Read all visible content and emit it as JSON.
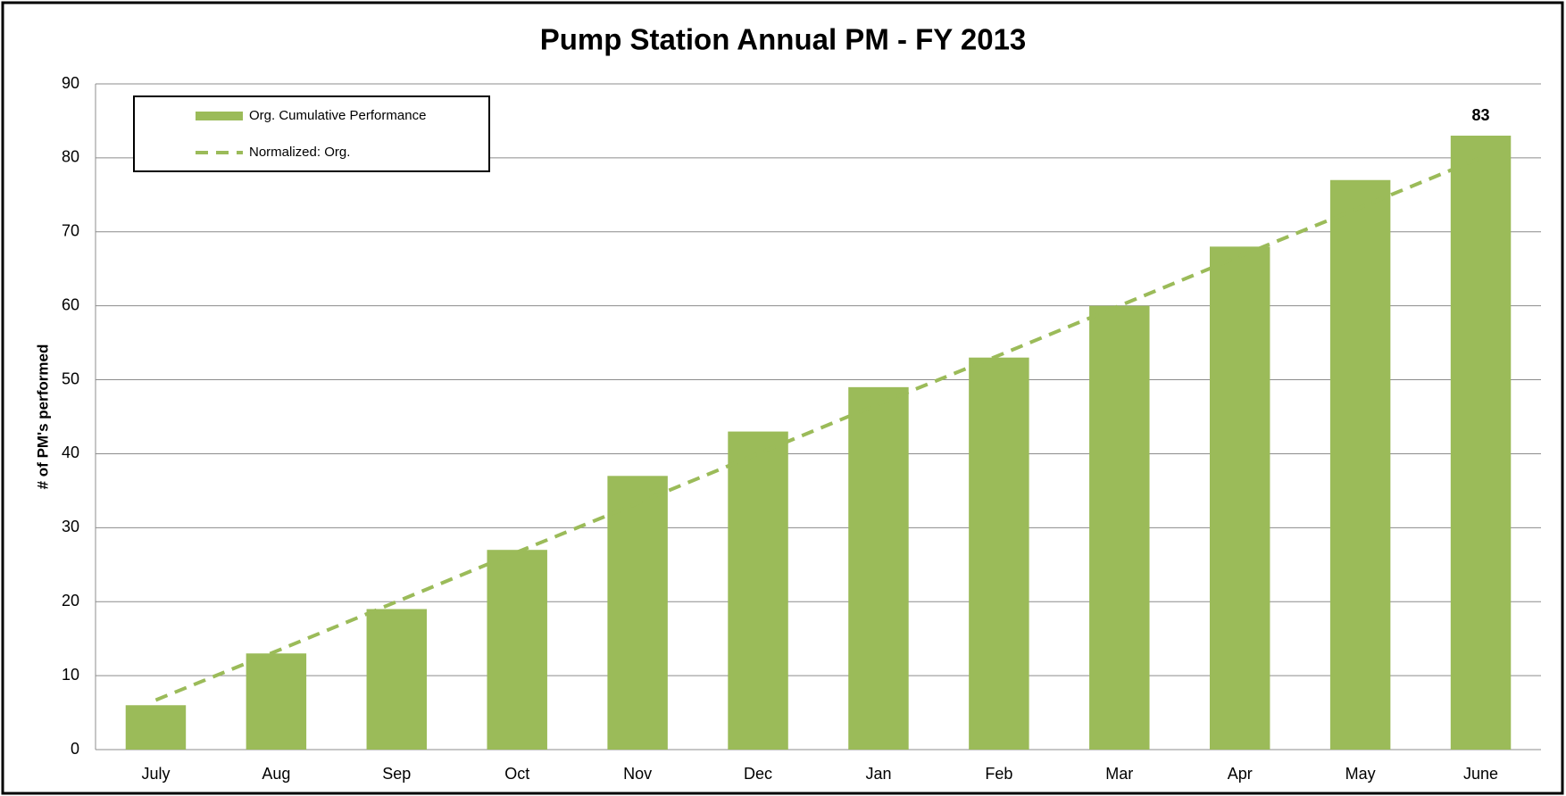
{
  "chart_data": {
    "type": "bar",
    "title": "Pump Station Annual PM - FY 2013",
    "y_label": "# of PM's performed",
    "categories": [
      "July",
      "Aug",
      "Sep",
      "Oct",
      "Nov",
      "Dec",
      "Jan",
      "Feb",
      "Mar",
      "Apr",
      "May",
      "June"
    ],
    "series": [
      {
        "name": "Org. Cumulative Performance",
        "type": "bar",
        "color": "#9bbb59",
        "values": [
          6,
          13,
          19,
          27,
          37,
          43,
          49,
          53,
          60,
          68,
          77,
          83
        ],
        "value_labels": [
          null,
          null,
          null,
          null,
          null,
          null,
          null,
          null,
          null,
          null,
          null,
          "83"
        ]
      },
      {
        "name": "Normalized: Org.",
        "type": "line",
        "dashed": true,
        "color": "#9bbb59",
        "values": [
          6.7,
          13.3,
          20,
          26.7,
          33.3,
          40,
          46.7,
          53.3,
          60,
          66.7,
          73.3,
          80
        ]
      }
    ],
    "ylim": [
      0,
      90
    ],
    "yticks": [
      0,
      10,
      20,
      30,
      40,
      50,
      60,
      70,
      80,
      90
    ],
    "grid": true,
    "legend": "top-left"
  }
}
